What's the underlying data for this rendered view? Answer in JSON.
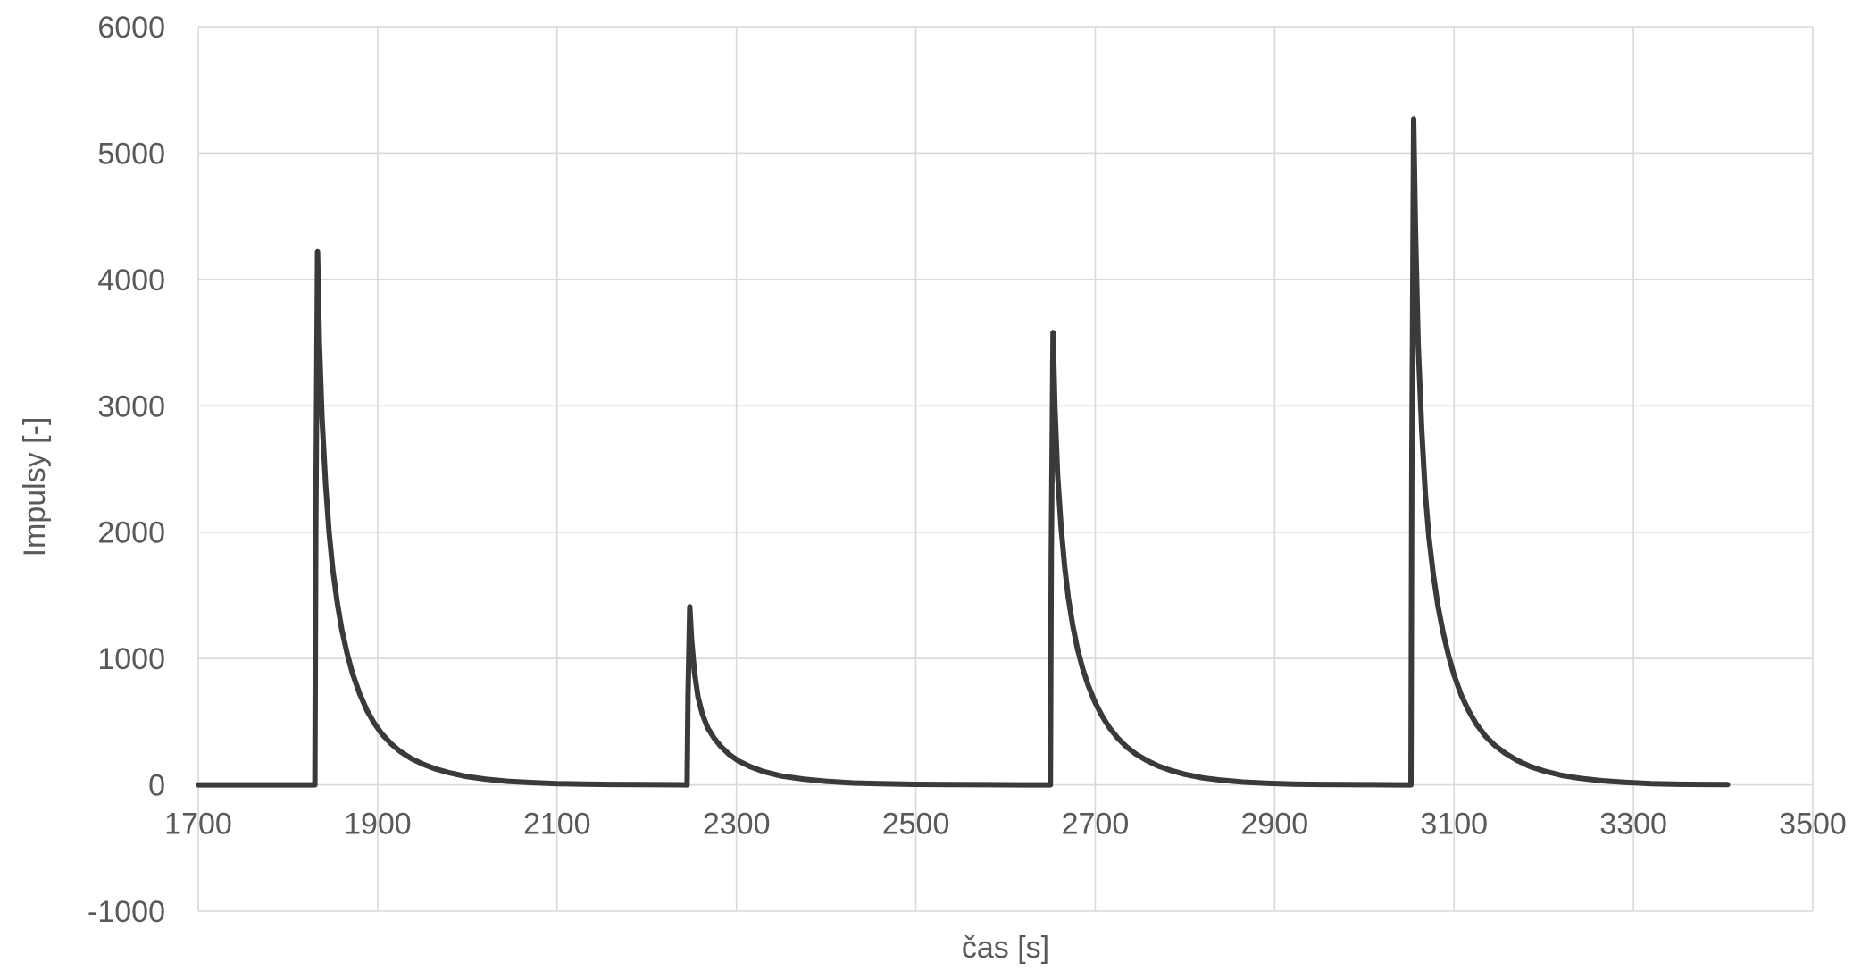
{
  "chart_data": {
    "type": "line",
    "xlabel": "čas [s]",
    "ylabel": "Impulsy [-]",
    "xlim": [
      1700,
      3500
    ],
    "ylim": [
      -1000,
      6000
    ],
    "x_ticks": [
      "1700",
      "1900",
      "2100",
      "2300",
      "2500",
      "2700",
      "2900",
      "3100",
      "3300",
      "3500"
    ],
    "y_ticks": [
      "-1000",
      "0",
      "1000",
      "2000",
      "3000",
      "4000",
      "5000",
      "6000"
    ],
    "grid": true,
    "legend": false,
    "colors": {
      "series": "#3a3a3a",
      "grid": "#d9d9d9",
      "text": "#595959"
    },
    "series": [
      {
        "x": [
          1700,
          1830,
          1831,
          1833,
          1835,
          1838,
          1842,
          1846,
          1850,
          1855,
          1860,
          1866,
          1872,
          1880,
          1888,
          1896,
          1905,
          1915,
          1925,
          1937,
          1950,
          1965,
          1980,
          2000,
          2020,
          2045,
          2070,
          2100,
          2130,
          2160,
          2190,
          2220,
          2245,
          2246,
          2248,
          2250,
          2253,
          2257,
          2262,
          2268,
          2275,
          2283,
          2292,
          2302,
          2315,
          2330,
          2350,
          2375,
          2400,
          2430,
          2460,
          2500,
          2540,
          2580,
          2620,
          2650,
          2651,
          2653,
          2655,
          2658,
          2662,
          2666,
          2670,
          2675,
          2680,
          2686,
          2692,
          2700,
          2708,
          2716,
          2725,
          2735,
          2745,
          2757,
          2770,
          2785,
          2800,
          2820,
          2840,
          2865,
          2890,
          2920,
          2950,
          2980,
          3010,
          3040,
          3052,
          3053,
          3055,
          3057,
          3060,
          3064,
          3068,
          3072,
          3077,
          3082,
          3088,
          3094,
          3100,
          3108,
          3116,
          3125,
          3135,
          3145,
          3157,
          3170,
          3185,
          3200,
          3220,
          3240,
          3265,
          3290,
          3320,
          3350,
          3380,
          3405
        ],
        "y": [
          0,
          0,
          2000,
          4220,
          3500,
          2900,
          2380,
          1990,
          1700,
          1440,
          1230,
          1040,
          880,
          720,
          590,
          490,
          400,
          325,
          265,
          210,
          165,
          125,
          95,
          65,
          45,
          28,
          18,
          10,
          6,
          3,
          2,
          1,
          0,
          700,
          1410,
          1150,
          900,
          700,
          560,
          450,
          370,
          300,
          240,
          190,
          145,
          105,
          70,
          45,
          28,
          15,
          9,
          4,
          2,
          1,
          0,
          0,
          1800,
          3580,
          3000,
          2450,
          2030,
          1720,
          1480,
          1260,
          1080,
          920,
          790,
          650,
          540,
          450,
          370,
          300,
          245,
          195,
          150,
          112,
          83,
          55,
          37,
          22,
          13,
          6,
          3,
          2,
          1,
          0,
          0,
          2600,
          5270,
          4400,
          3500,
          2800,
          2300,
          1960,
          1660,
          1420,
          1200,
          1020,
          870,
          710,
          590,
          480,
          385,
          315,
          250,
          195,
          145,
          110,
          75,
          52,
          32,
          20,
          10,
          5,
          3,
          2
        ]
      }
    ]
  }
}
